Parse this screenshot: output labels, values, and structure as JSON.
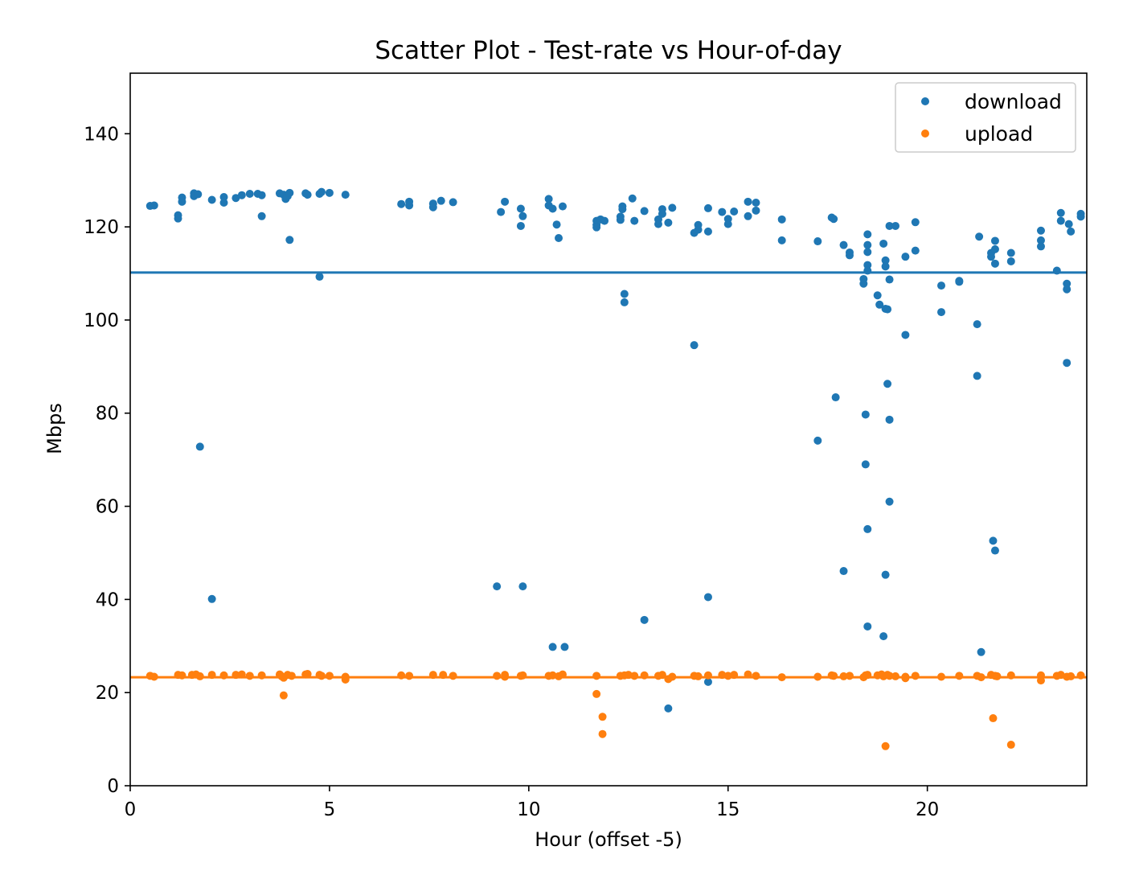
{
  "chart_data": {
    "type": "scatter",
    "title": "Scatter Plot - Test-rate vs Hour-of-day",
    "xlabel": "Hour (offset -5)",
    "ylabel": "Mbps",
    "xlim": [
      0,
      24
    ],
    "ylim": [
      0,
      153
    ],
    "xticks": [
      0,
      5,
      10,
      15,
      20
    ],
    "yticks": [
      0,
      20,
      40,
      60,
      80,
      100,
      120,
      140
    ],
    "grid": false,
    "legend_position": "top-right",
    "series": [
      {
        "name": "download",
        "color": "#1f77b4",
        "mean": 110.2,
        "points": [
          [
            0.5,
            124.5
          ],
          [
            0.6,
            124.6
          ],
          [
            1.2,
            122.5
          ],
          [
            1.2,
            121.8
          ],
          [
            1.3,
            126.3
          ],
          [
            1.3,
            125.4
          ],
          [
            1.6,
            127.2
          ],
          [
            1.6,
            126.6
          ],
          [
            1.7,
            127.0
          ],
          [
            1.75,
            72.8
          ],
          [
            2.05,
            125.8
          ],
          [
            2.05,
            40.1
          ],
          [
            2.35,
            126.4
          ],
          [
            2.35,
            125.2
          ],
          [
            2.65,
            126.2
          ],
          [
            2.8,
            126.8
          ],
          [
            3.0,
            127.1
          ],
          [
            3.2,
            127.1
          ],
          [
            3.3,
            126.8
          ],
          [
            3.3,
            122.3
          ],
          [
            3.75,
            127.2
          ],
          [
            3.85,
            126.9
          ],
          [
            3.9,
            126.0
          ],
          [
            3.95,
            126.6
          ],
          [
            4.0,
            127.3
          ],
          [
            4.0,
            117.2
          ],
          [
            4.4,
            127.2
          ],
          [
            4.45,
            126.9
          ],
          [
            4.75,
            127.1
          ],
          [
            4.8,
            127.5
          ],
          [
            4.75,
            109.3
          ],
          [
            5.0,
            127.3
          ],
          [
            5.4,
            126.9
          ],
          [
            6.8,
            124.9
          ],
          [
            7.0,
            125.4
          ],
          [
            7.0,
            124.6
          ],
          [
            7.6,
            125.0
          ],
          [
            7.6,
            124.2
          ],
          [
            7.8,
            125.6
          ],
          [
            8.1,
            125.3
          ],
          [
            9.2,
            42.8
          ],
          [
            9.3,
            123.2
          ],
          [
            9.4,
            125.4
          ],
          [
            9.8,
            123.9
          ],
          [
            9.8,
            120.2
          ],
          [
            9.85,
            122.3
          ],
          [
            9.85,
            42.8
          ],
          [
            10.5,
            126.0
          ],
          [
            10.5,
            124.6
          ],
          [
            10.6,
            123.9
          ],
          [
            10.6,
            29.8
          ],
          [
            10.7,
            120.5
          ],
          [
            10.75,
            117.6
          ],
          [
            10.85,
            124.4
          ],
          [
            10.9,
            29.8
          ],
          [
            11.7,
            121.3
          ],
          [
            11.7,
            120.4
          ],
          [
            11.7,
            119.9
          ],
          [
            11.8,
            121.6
          ],
          [
            11.9,
            121.3
          ],
          [
            12.3,
            122.2
          ],
          [
            12.3,
            121.5
          ],
          [
            12.35,
            124.4
          ],
          [
            12.35,
            123.8
          ],
          [
            12.4,
            105.6
          ],
          [
            12.4,
            103.8
          ],
          [
            12.6,
            126.1
          ],
          [
            12.65,
            121.3
          ],
          [
            12.9,
            123.4
          ],
          [
            12.9,
            35.6
          ],
          [
            13.25,
            121.6
          ],
          [
            13.25,
            120.6
          ],
          [
            13.35,
            123.8
          ],
          [
            13.35,
            122.8
          ],
          [
            13.5,
            120.9
          ],
          [
            13.5,
            16.6
          ],
          [
            13.6,
            124.1
          ],
          [
            14.15,
            118.7
          ],
          [
            14.15,
            94.6
          ],
          [
            14.25,
            120.4
          ],
          [
            14.25,
            119.4
          ],
          [
            14.5,
            124.0
          ],
          [
            14.5,
            119.0
          ],
          [
            14.5,
            40.5
          ],
          [
            14.5,
            22.3
          ],
          [
            14.85,
            123.2
          ],
          [
            15.0,
            121.7
          ],
          [
            15.0,
            120.6
          ],
          [
            15.15,
            123.3
          ],
          [
            15.5,
            125.4
          ],
          [
            15.5,
            122.3
          ],
          [
            15.7,
            125.2
          ],
          [
            15.7,
            123.5
          ],
          [
            16.35,
            121.6
          ],
          [
            16.35,
            117.1
          ],
          [
            17.25,
            116.9
          ],
          [
            17.25,
            74.1
          ],
          [
            17.6,
            122.0
          ],
          [
            17.65,
            121.7
          ],
          [
            17.7,
            83.4
          ],
          [
            17.9,
            116.1
          ],
          [
            17.9,
            46.1
          ],
          [
            18.05,
            114.5
          ],
          [
            18.05,
            113.9
          ],
          [
            18.4,
            108.8
          ],
          [
            18.4,
            107.8
          ],
          [
            18.45,
            79.7
          ],
          [
            18.45,
            69.0
          ],
          [
            18.5,
            118.4
          ],
          [
            18.5,
            116.1
          ],
          [
            18.5,
            114.6
          ],
          [
            18.5,
            111.8
          ],
          [
            18.5,
            110.6
          ],
          [
            18.5,
            55.1
          ],
          [
            18.5,
            34.2
          ],
          [
            18.75,
            105.3
          ],
          [
            18.8,
            103.3
          ],
          [
            18.9,
            116.4
          ],
          [
            18.9,
            32.1
          ],
          [
            18.95,
            112.8
          ],
          [
            18.95,
            111.5
          ],
          [
            18.95,
            102.4
          ],
          [
            18.95,
            45.3
          ],
          [
            19.0,
            102.3
          ],
          [
            19.0,
            86.3
          ],
          [
            19.05,
            120.2
          ],
          [
            19.05,
            108.7
          ],
          [
            19.05,
            78.6
          ],
          [
            19.05,
            61.0
          ],
          [
            19.2,
            120.2
          ],
          [
            19.45,
            113.6
          ],
          [
            19.45,
            96.8
          ],
          [
            19.7,
            121.0
          ],
          [
            19.7,
            114.9
          ],
          [
            20.35,
            107.4
          ],
          [
            20.35,
            101.7
          ],
          [
            20.8,
            108.4
          ],
          [
            20.8,
            108.2
          ],
          [
            21.25,
            99.1
          ],
          [
            21.25,
            88.0
          ],
          [
            21.3,
            117.9
          ],
          [
            21.35,
            28.7
          ],
          [
            21.6,
            114.4
          ],
          [
            21.6,
            113.6
          ],
          [
            21.65,
            52.6
          ],
          [
            21.7,
            117.0
          ],
          [
            21.7,
            115.2
          ],
          [
            21.7,
            112.1
          ],
          [
            21.7,
            50.5
          ],
          [
            22.1,
            114.4
          ],
          [
            22.1,
            112.6
          ],
          [
            22.85,
            119.2
          ],
          [
            22.85,
            117.1
          ],
          [
            22.85,
            115.8
          ],
          [
            23.25,
            110.6
          ],
          [
            23.35,
            123.0
          ],
          [
            23.35,
            121.3
          ],
          [
            23.5,
            107.8
          ],
          [
            23.5,
            106.6
          ],
          [
            23.5,
            90.8
          ],
          [
            23.55,
            120.6
          ],
          [
            23.6,
            119.0
          ],
          [
            23.85,
            122.8
          ],
          [
            23.85,
            122.2
          ]
        ]
      },
      {
        "name": "upload",
        "color": "#ff7f0e",
        "mean": 23.3,
        "points": [
          [
            0.5,
            23.6
          ],
          [
            0.6,
            23.4
          ],
          [
            1.2,
            23.8
          ],
          [
            1.3,
            23.7
          ],
          [
            1.55,
            23.8
          ],
          [
            1.65,
            23.9
          ],
          [
            1.75,
            23.5
          ],
          [
            2.05,
            23.8
          ],
          [
            2.35,
            23.7
          ],
          [
            2.65,
            23.8
          ],
          [
            2.8,
            23.9
          ],
          [
            3.0,
            23.6
          ],
          [
            3.3,
            23.7
          ],
          [
            3.75,
            23.9
          ],
          [
            3.8,
            23.5
          ],
          [
            3.85,
            19.4
          ],
          [
            3.85,
            23.2
          ],
          [
            3.95,
            23.8
          ],
          [
            4.05,
            23.6
          ],
          [
            4.4,
            23.9
          ],
          [
            4.45,
            24.0
          ],
          [
            4.75,
            23.8
          ],
          [
            4.8,
            23.6
          ],
          [
            5.0,
            23.6
          ],
          [
            5.4,
            23.4
          ],
          [
            5.4,
            22.8
          ],
          [
            6.8,
            23.7
          ],
          [
            7.0,
            23.6
          ],
          [
            7.6,
            23.8
          ],
          [
            7.85,
            23.8
          ],
          [
            8.1,
            23.6
          ],
          [
            9.2,
            23.6
          ],
          [
            9.4,
            23.4
          ],
          [
            9.4,
            23.8
          ],
          [
            9.8,
            23.6
          ],
          [
            9.85,
            23.7
          ],
          [
            10.5,
            23.6
          ],
          [
            10.6,
            23.7
          ],
          [
            10.75,
            23.5
          ],
          [
            10.85,
            23.9
          ],
          [
            11.7,
            23.6
          ],
          [
            11.7,
            19.7
          ],
          [
            11.85,
            14.8
          ],
          [
            11.85,
            11.1
          ],
          [
            12.3,
            23.6
          ],
          [
            12.4,
            23.7
          ],
          [
            12.5,
            23.8
          ],
          [
            12.65,
            23.6
          ],
          [
            12.9,
            23.7
          ],
          [
            13.25,
            23.6
          ],
          [
            13.35,
            23.8
          ],
          [
            13.5,
            22.9
          ],
          [
            13.6,
            23.4
          ],
          [
            14.15,
            23.6
          ],
          [
            14.25,
            23.5
          ],
          [
            14.5,
            23.7
          ],
          [
            14.85,
            23.8
          ],
          [
            15.0,
            23.6
          ],
          [
            15.15,
            23.8
          ],
          [
            15.5,
            23.9
          ],
          [
            15.7,
            23.6
          ],
          [
            16.35,
            23.3
          ],
          [
            17.25,
            23.4
          ],
          [
            17.6,
            23.7
          ],
          [
            17.65,
            23.6
          ],
          [
            17.9,
            23.5
          ],
          [
            18.05,
            23.6
          ],
          [
            18.4,
            23.3
          ],
          [
            18.45,
            23.7
          ],
          [
            18.5,
            23.8
          ],
          [
            18.75,
            23.7
          ],
          [
            18.85,
            23.9
          ],
          [
            18.9,
            23.5
          ],
          [
            18.95,
            8.5
          ],
          [
            19.0,
            23.8
          ],
          [
            19.05,
            23.6
          ],
          [
            19.2,
            23.5
          ],
          [
            19.45,
            23.4
          ],
          [
            19.45,
            23.1
          ],
          [
            19.7,
            23.6
          ],
          [
            20.35,
            23.4
          ],
          [
            20.8,
            23.6
          ],
          [
            21.25,
            23.6
          ],
          [
            21.35,
            23.3
          ],
          [
            21.6,
            23.8
          ],
          [
            21.65,
            14.5
          ],
          [
            21.7,
            23.6
          ],
          [
            21.75,
            23.5
          ],
          [
            22.1,
            23.7
          ],
          [
            22.1,
            8.8
          ],
          [
            22.85,
            23.7
          ],
          [
            22.85,
            22.6
          ],
          [
            23.25,
            23.6
          ],
          [
            23.35,
            23.8
          ],
          [
            23.5,
            23.4
          ],
          [
            23.6,
            23.5
          ],
          [
            23.85,
            23.7
          ]
        ]
      }
    ]
  }
}
